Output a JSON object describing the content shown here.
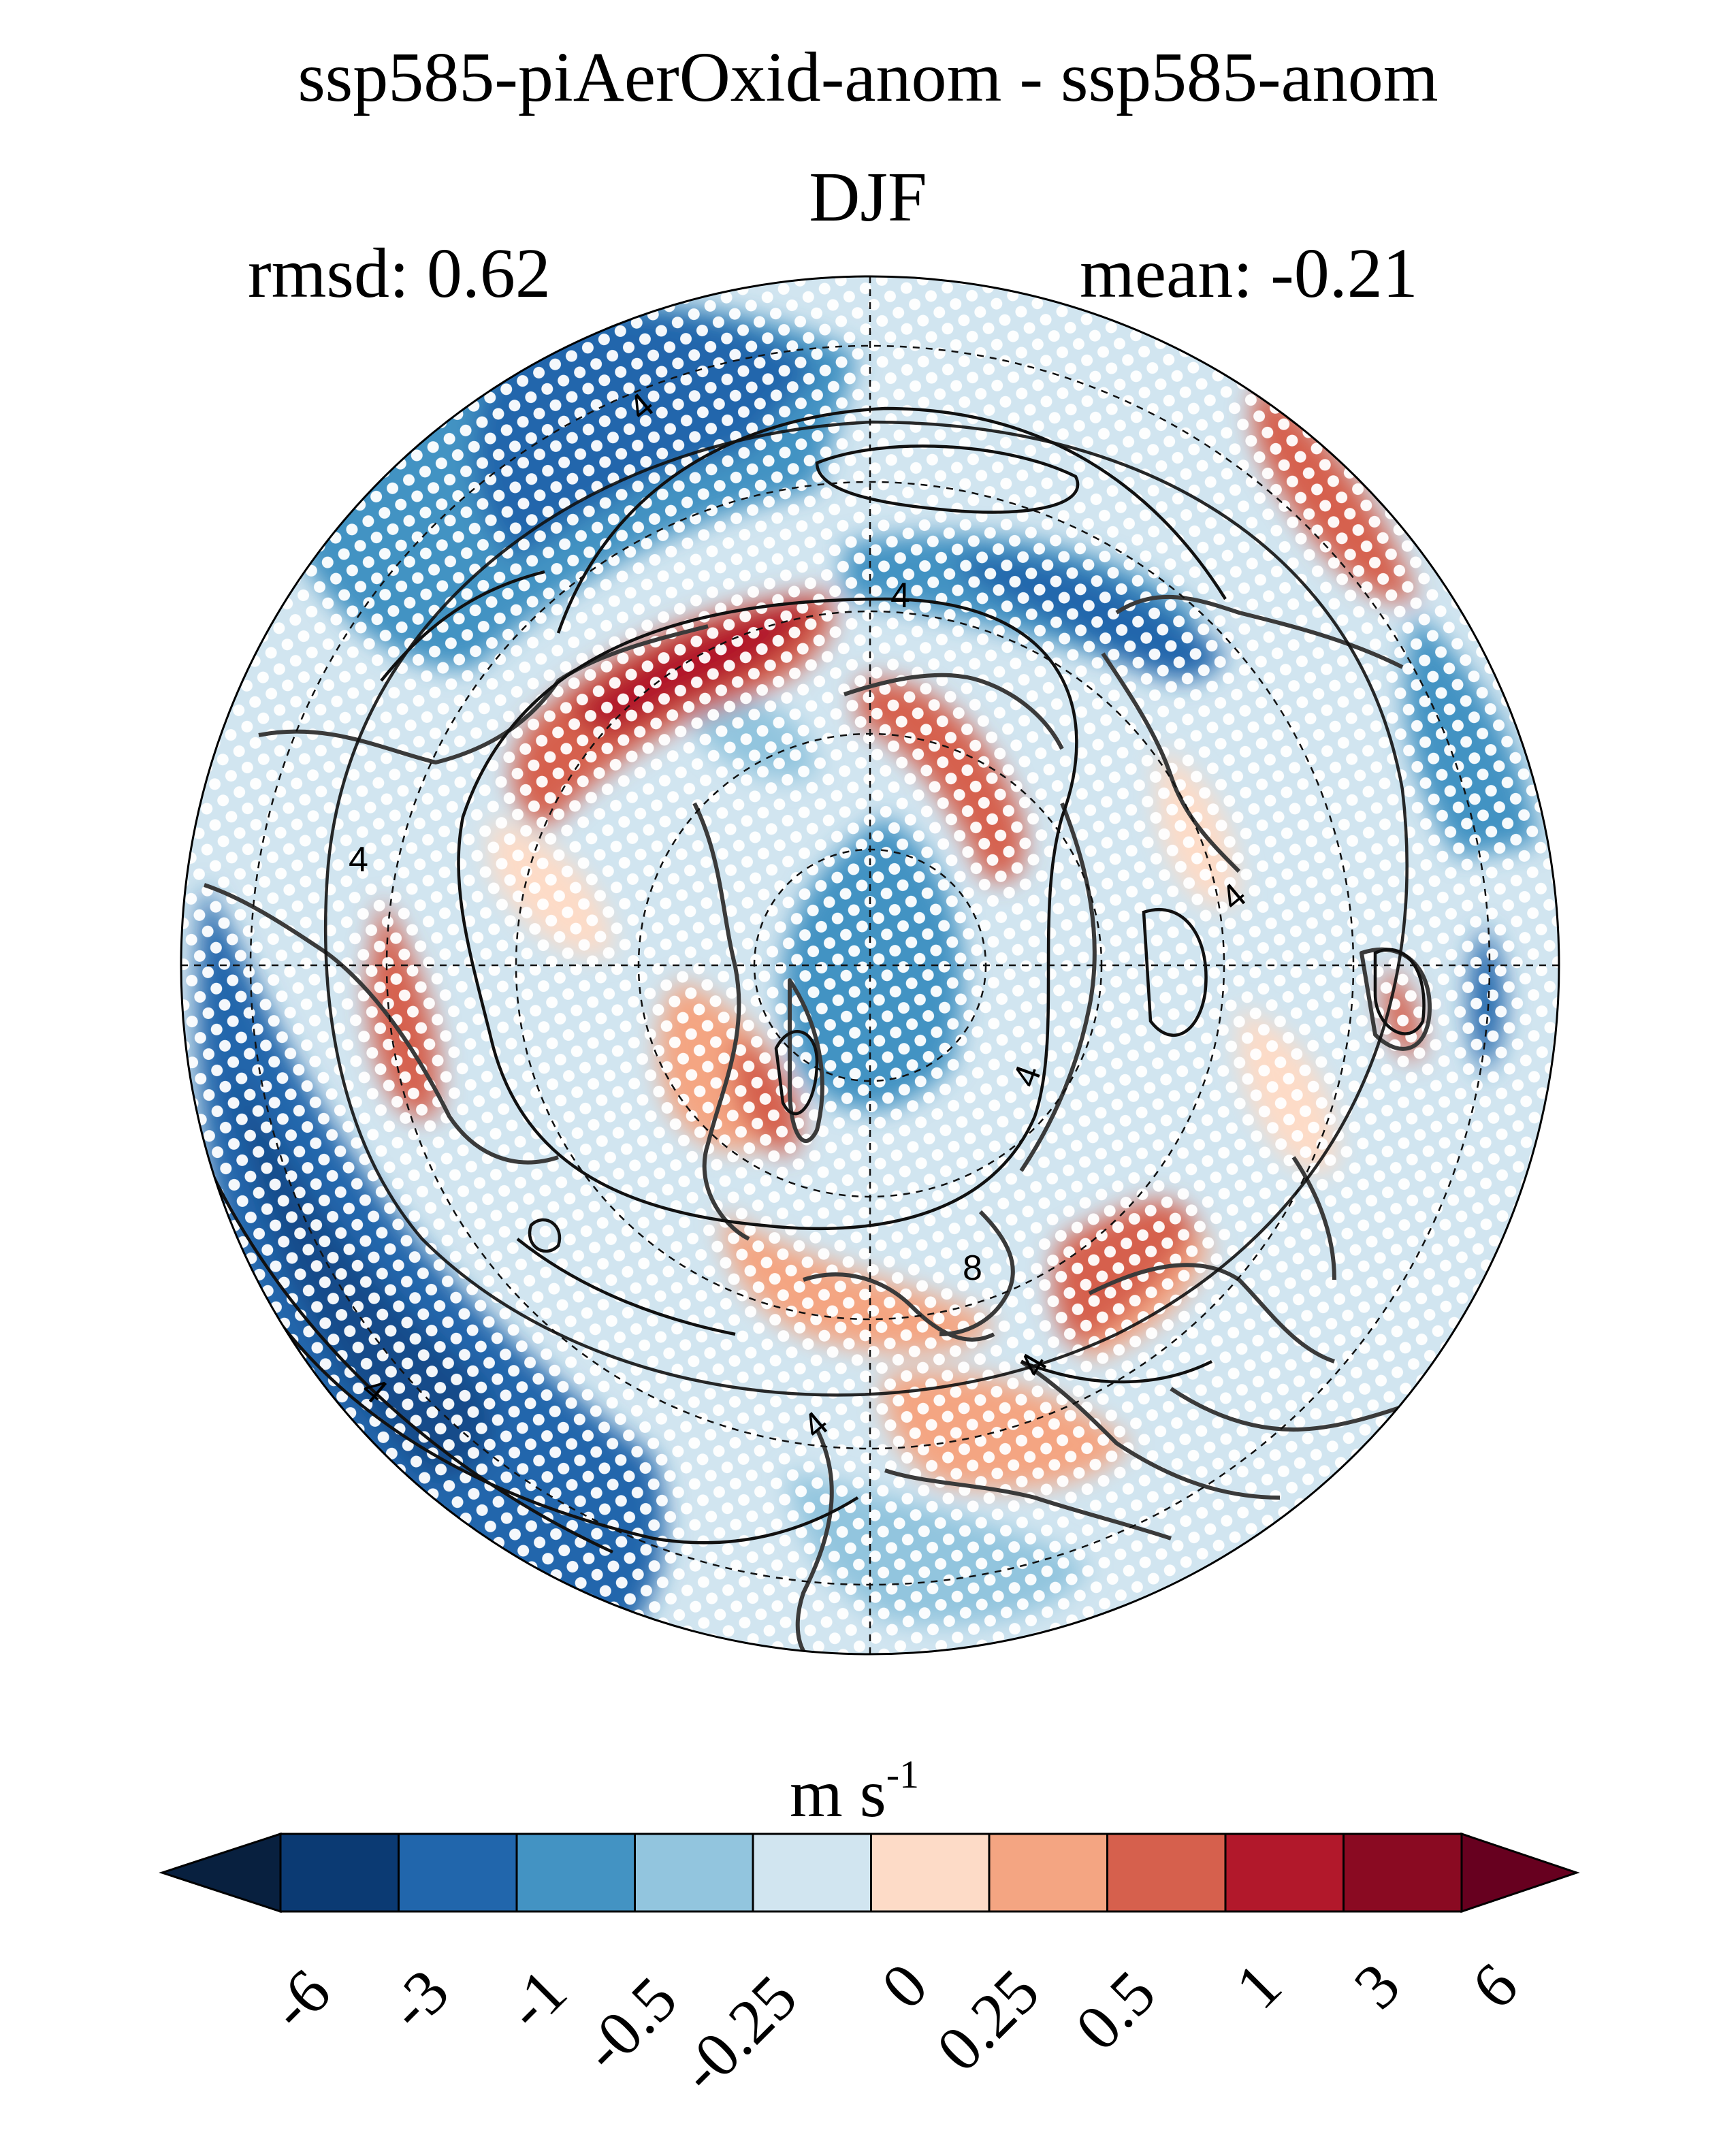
{
  "title": "ssp585-piAerOxid-anom - ssp585-anom",
  "season": "DJF",
  "stats": {
    "rmsd": "rmsd: 0.62",
    "mean": "mean: -0.21"
  },
  "colorbar": {
    "unit": "m s",
    "unit_exp": "-1",
    "ticks": [
      "-6",
      "-3",
      "-1",
      "-0.5",
      "-0.25",
      "0",
      "0.25",
      "0.5",
      "1",
      "3",
      "6"
    ],
    "colors": [
      "#08203f",
      "#0b3a73",
      "#2166ac",
      "#4393c3",
      "#92c5de",
      "#d1e5f0",
      "#fddbc7",
      "#f4a582",
      "#d6604d",
      "#b2182b",
      "#8a0a22",
      "#67001f"
    ]
  },
  "contour_labels": [
    "4",
    "4",
    "4",
    "4",
    "4",
    "4",
    "4",
    "4",
    "8"
  ],
  "map": {
    "projection": "north-polar-stereographic",
    "stippling": "white dots mark significant regions",
    "gridlines": "dashed"
  }
}
